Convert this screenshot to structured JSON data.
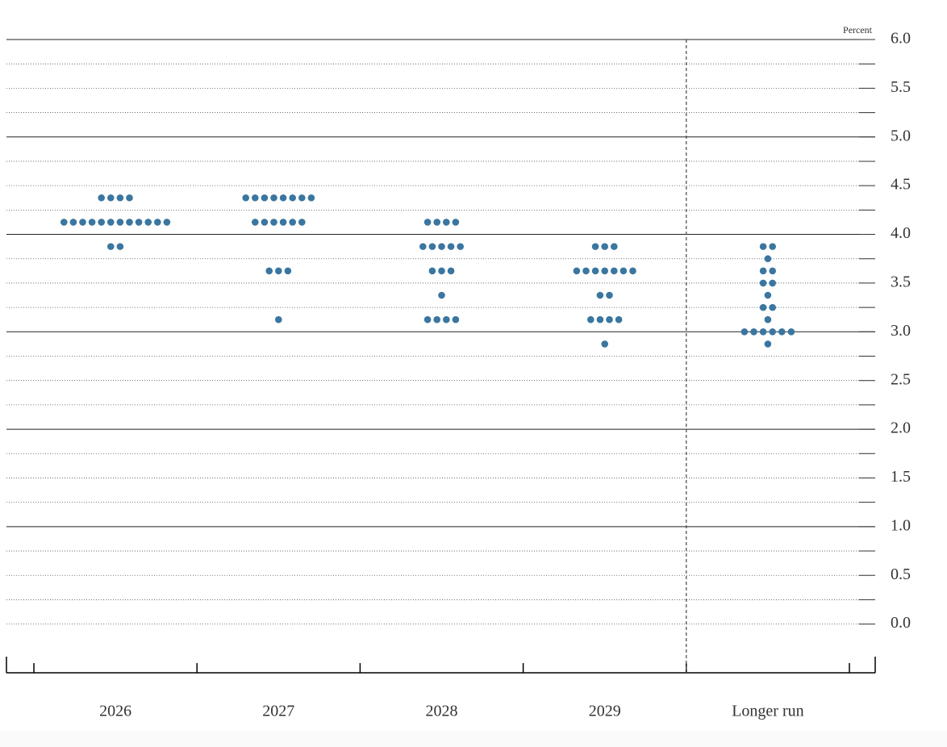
{
  "chart_data": {
    "type": "dot",
    "y_axis_label": "Percent",
    "categories": [
      "2026",
      "2027",
      "2028",
      "2029",
      "Longer run"
    ],
    "color": "#3a76a0",
    "levels": [
      [
        {
          "value": 4.375,
          "count": 4
        },
        {
          "value": 4.125,
          "count": 12
        },
        {
          "value": 3.875,
          "count": 2
        }
      ],
      [
        {
          "value": 4.375,
          "count": 8
        },
        {
          "value": 4.125,
          "count": 6
        },
        {
          "value": 3.625,
          "count": 3
        },
        {
          "value": 3.125,
          "count": 1
        }
      ],
      [
        {
          "value": 4.125,
          "count": 4
        },
        {
          "value": 3.875,
          "count": 5
        },
        {
          "value": 3.625,
          "count": 3
        },
        {
          "value": 3.375,
          "count": 1
        },
        {
          "value": 3.125,
          "count": 4
        }
      ],
      [
        {
          "value": 3.875,
          "count": 3
        },
        {
          "value": 3.625,
          "count": 7
        },
        {
          "value": 3.375,
          "count": 2
        },
        {
          "value": 3.125,
          "count": 4
        },
        {
          "value": 2.875,
          "count": 1
        }
      ],
      [
        {
          "value": 3.875,
          "count": 2
        },
        {
          "value": 3.75,
          "count": 1
        },
        {
          "value": 3.625,
          "count": 2
        },
        {
          "value": 3.5,
          "count": 2
        },
        {
          "value": 3.375,
          "count": 1
        },
        {
          "value": 3.25,
          "count": 2
        },
        {
          "value": 3.125,
          "count": 1
        },
        {
          "value": 3.0,
          "count": 6
        },
        {
          "value": 2.875,
          "count": 1
        }
      ]
    ],
    "ylim": [
      -0.5,
      6.0
    ],
    "yticks": [
      {
        "value": 0,
        "label": "0.0"
      },
      0.5,
      {
        "value": 1,
        "label": "1.0"
      },
      1.5,
      {
        "value": 2,
        "label": "2.0"
      },
      2.5,
      {
        "value": 3,
        "label": "3.0"
      },
      3.5,
      {
        "value": 4,
        "label": "4.0"
      },
      4.5,
      {
        "value": 5,
        "label": "5.0"
      },
      5.5,
      {
        "value": 6,
        "label": "6.0"
      }
    ],
    "minor_yticks": [
      0.25,
      0.75,
      1.25,
      1.75,
      2.25,
      2.75,
      3.25,
      3.75,
      4.25,
      4.75,
      5.25,
      5.75
    ],
    "major_gridlines": [
      1,
      2,
      3,
      4,
      5,
      6
    ],
    "grid": true
  }
}
